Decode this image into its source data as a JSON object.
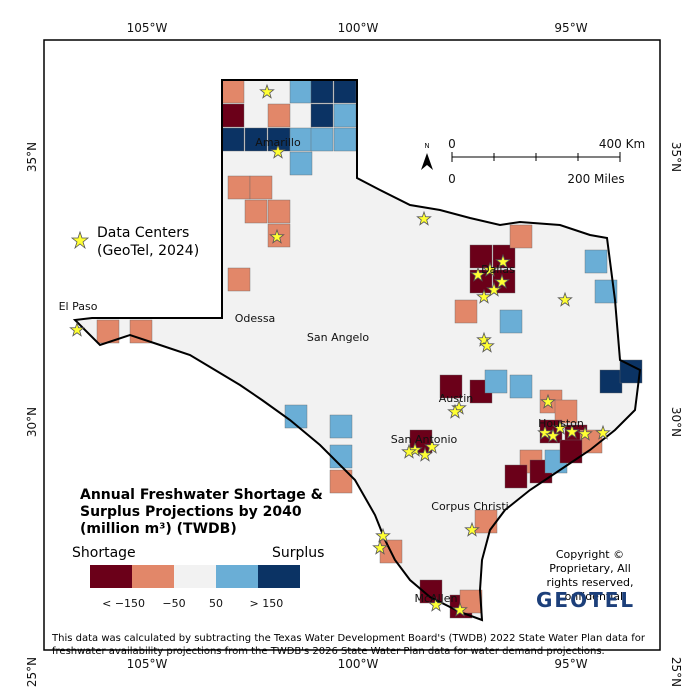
{
  "map": {
    "lon_labels": [
      "105°W",
      "100°W",
      "95°W"
    ],
    "lat_labels": [
      "35°N",
      "30°N",
      "25°N"
    ],
    "cities": [
      "Amarillo",
      "Odessa",
      "San Angelo",
      "Dallas",
      "Austin",
      "San Antonio",
      "Houston",
      "Corpus Christi",
      "McAllen",
      "El Paso"
    ],
    "north": "N",
    "scale": {
      "km_zero": "0",
      "km_end": "400 Km",
      "mi_zero": "0",
      "mi_end": "200 Miles"
    },
    "data_centers_legend": "Data Centers (GeoTel, 2024)",
    "title": "Annual Freshwater Shortage & Surplus Projections by 2040 (million m³) (TWDB)",
    "legend": {
      "left": "Shortage",
      "right": "Surplus",
      "colors": [
        "#6b0019",
        "#e28769",
        "#f2f2f2",
        "#6aaed6",
        "#0b3364"
      ],
      "breaks": [
        "< −150",
        "−50",
        "50",
        "> 150"
      ]
    },
    "copyright": "Copyright © Proprietary, All rights reserved, Confidential",
    "logo": "GEOTEL",
    "note": "This data was calculated by subtracting the Texas Water Development Board's (TWDB) 2022 State Water Plan data for freshwater availability projections from the TWDB's 2026 State Water Plan data for water demand projections."
  }
}
